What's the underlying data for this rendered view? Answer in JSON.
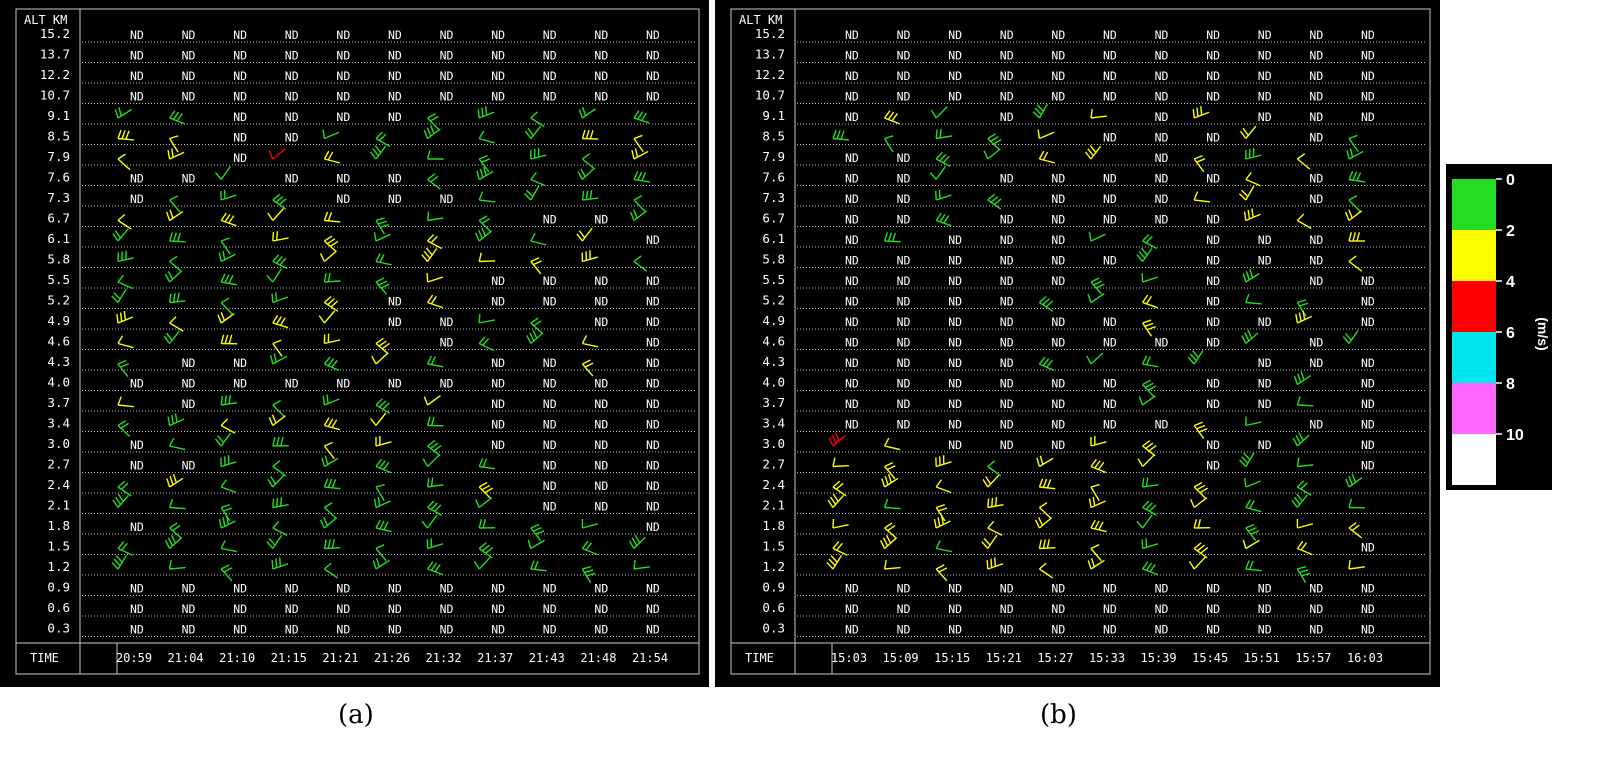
{
  "altitude_header": "ALT KM",
  "altitudes": [
    "15.2",
    "13.7",
    "12.2",
    "10.7",
    "9.1",
    "8.5",
    "7.9",
    "7.6",
    "7.3",
    "6.7",
    "6.1",
    "5.8",
    "5.5",
    "5.2",
    "4.9",
    "4.6",
    "4.3",
    "4.0",
    "3.7",
    "3.4",
    "3.0",
    "2.7",
    "2.4",
    "2.1",
    "1.8",
    "1.5",
    "1.2",
    "0.9",
    "0.6",
    "0.3"
  ],
  "time_label": "TIME",
  "nd_label": "ND",
  "colors": {
    "s0": "#22dd22",
    "s2": "#ffff00",
    "s4": "#ff0000",
    "s6": "#00e5ee",
    "s8": "#ff66ff",
    "s10": "#ffffff",
    "grid": "#c8c8c8",
    "text": "#ffffff"
  },
  "colorbar": {
    "ticks": [
      "0",
      "2",
      "4",
      "6",
      "8",
      "10"
    ],
    "unit": "(m/s)",
    "colors": [
      "#22dd22",
      "#ffff00",
      "#ff0000",
      "#00e5ee",
      "#ff66ff",
      "#ffffff"
    ]
  },
  "captions": {
    "a": "(a)",
    "b": "(b)"
  },
  "chart_data": [
    {
      "type": "wind-profile",
      "id": "a",
      "times": [
        "20:59",
        "21:04",
        "21:10",
        "21:15",
        "21:21",
        "21:26",
        "21:32",
        "21:37",
        "21:43",
        "21:48",
        "21:54"
      ],
      "rows": [
        "NNNNNNNNNNN",
        "NNNNNNNNNNN",
        "NNNNNNNNNNN",
        "NNNNNNNNNNN",
        "GGNNNNGGGGG",
        "YYNNGGGGGYY",
        "YYNRYGGGGGY",
        "NNGNNNGGGGG",
        "NGGGNNNGGGG",
        "YYYYYGGGNNG",
        "GGGYYGYGGYN",
        "GGGGYGYYYYG",
        "GGGGGGYNNNN",
        "GGGGYNYNNNN",
        "YYYYYNNGGNN",
        "YGYYYYNGGYN",
        "GNNGGYGNNYN",
        "NNNNNNNNNNN",
        "YNGGGGYNNNN",
        "GGYYYYGNNNN",
        "NGGGYYGNNNN",
        "NNGGGGGGNNN",
        "GYGGGGGYNNN",
        "GGGGGGGGNNN",
        "NGGGGGGGGGN",
        "GGGGGGGGGGG",
        "GGGGGGGGGGG",
        "NNNNNNNNNNN",
        "NNNNNNNNNNN",
        "NNNNNNNNNNN"
      ]
    },
    {
      "type": "wind-profile",
      "id": "b",
      "times": [
        "15:03",
        "15:09",
        "15:15",
        "15:21",
        "15:27",
        "15:33",
        "15:39",
        "15:45",
        "15:51",
        "15:57",
        "16:03"
      ],
      "rows": [
        "NNNNNNNNNNN",
        "NNNNNNNNNNN",
        "NNNNNNNNNNN",
        "NNNNNNNNNNN",
        "NYGNGYNYNNN",
        "GGGGYNNNYNG",
        "NNGGYYNYGYG",
        "NNGNNNNNYNG",
        "NNGGNNNYYNG",
        "NNGNNNNNYYY",
        "NGNNNGGNNNY",
        "NNNNNNGNNNY",
        "NNNNNGGNGNN",
        "NNNNGGYNGGN",
        "NNNNNNYNNYN",
        "NNNNNNNNGNG",
        "NNNNGGGGNNN",
        "NNNNNNGNNGN",
        "NNNNNNGNNGN",
        "NNNNNNNYGNN",
        "RYNNNYYNNGN",
        "YYYGYYYNGGN",
        "YYYYYYGYGGG",
        "YGYYYYGYGGG",
        "YYYYYYGYGYY",
        "YYGYYYGYYYN",
        "YYYYYYGYGGY",
        "NNNNNNNNNNN",
        "NNNNNNNNNNN",
        "NNNNNNNNNNN"
      ]
    }
  ]
}
